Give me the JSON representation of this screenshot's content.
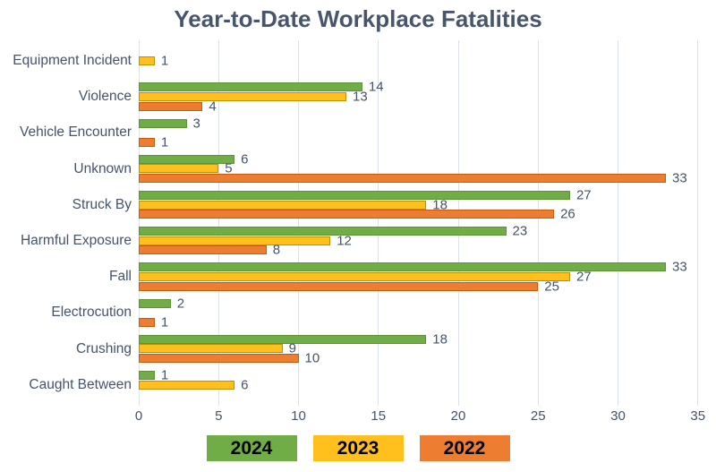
{
  "chart_data": {
    "type": "bar",
    "orientation": "horizontal",
    "title": "Year-to-Date Workplace Fatalities",
    "categories": [
      "Equipment Incident",
      "Violence",
      "Vehicle Encounter",
      "Unknown",
      "Struck By",
      "Harmful Exposure",
      "Fall",
      "Electrocution",
      "Crushing",
      "Caught Between"
    ],
    "series": [
      {
        "name": "2024",
        "color": "#70AD47",
        "border_color": "#5e9138",
        "values": [
          null,
          14,
          3,
          6,
          27,
          23,
          33,
          2,
          18,
          1
        ]
      },
      {
        "name": "2023",
        "color": "#FFC01E",
        "border_color": "#bf9000",
        "values": [
          1,
          13,
          null,
          5,
          18,
          12,
          27,
          null,
          9,
          6
        ]
      },
      {
        "name": "2022",
        "color": "#ED7D31",
        "border_color": "#c55a11",
        "values": [
          null,
          4,
          1,
          33,
          26,
          8,
          25,
          1,
          10,
          null
        ]
      }
    ],
    "x_ticks": [
      0,
      5,
      10,
      15,
      20,
      25,
      30,
      35
    ],
    "xlim": [
      0,
      35
    ],
    "grid": "vertical",
    "legend_position": "bottom",
    "title_color": "#47566C",
    "label_color": "#44546A",
    "gridline_color": "#dde3ea"
  }
}
